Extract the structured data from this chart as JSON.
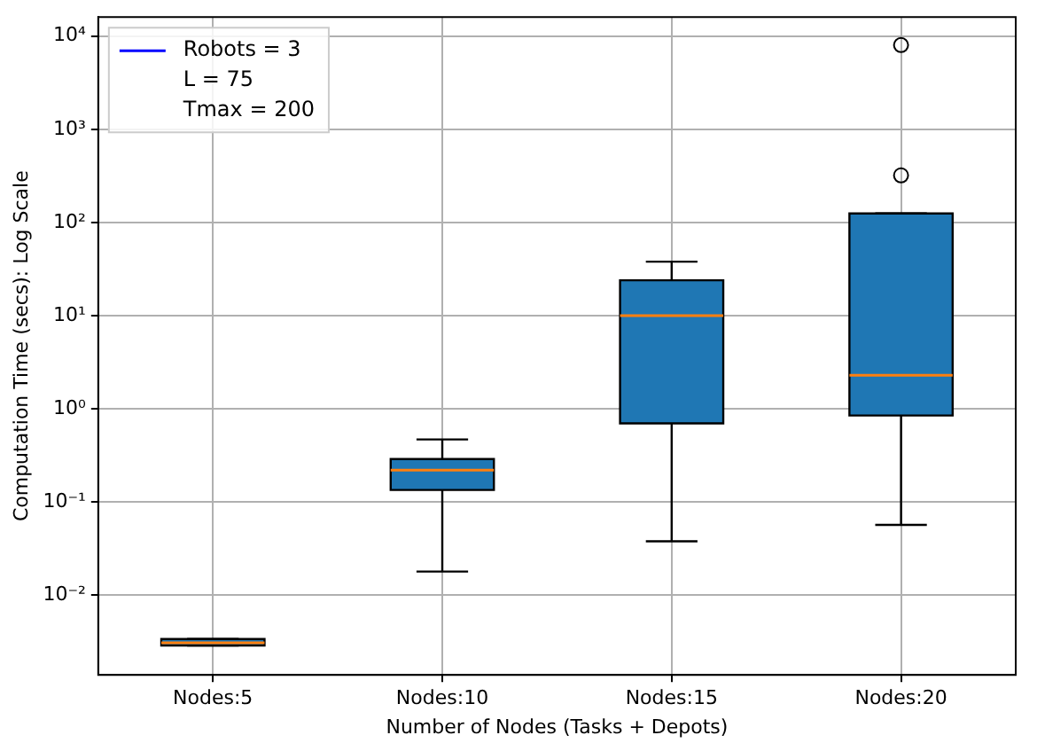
{
  "chart_data": {
    "type": "box",
    "xlabel": "Number of Nodes (Tasks + Depots)",
    "ylabel": "Computation Time (secs): Log Scale",
    "categories": [
      "Nodes:5",
      "Nodes:10",
      "Nodes:15",
      "Nodes:20"
    ],
    "log": "y",
    "ylim": [
      0.0014,
      16000
    ],
    "yticks": [
      {
        "value": 0.01,
        "label": "10⁻²"
      },
      {
        "value": 0.1,
        "label": "10⁻¹"
      },
      {
        "value": 1,
        "label": "10⁰"
      },
      {
        "value": 10,
        "label": "10¹"
      },
      {
        "value": 100,
        "label": "10²"
      },
      {
        "value": 1000,
        "label": "10³"
      },
      {
        "value": 10000,
        "label": "10⁴"
      }
    ],
    "grid": true,
    "legend": "top left",
    "series": [
      {
        "color": "#1f77b4",
        "boxes": [
          {
            "low": 0.0029,
            "q1": 0.0029,
            "median": 0.0031,
            "q3": 0.0034,
            "high": 0.0034
          },
          {
            "low": 0.018,
            "q1": 0.135,
            "median": 0.22,
            "q3": 0.29,
            "high": 0.47
          },
          {
            "low": 0.038,
            "q1": 0.7,
            "median": 10,
            "q3": 24,
            "high": 38
          },
          {
            "low": 0.057,
            "q1": 0.85,
            "median": 2.3,
            "q3": 125,
            "high": 125,
            "outliers": [
              320,
              8000
            ]
          }
        ]
      },
      {
        "type": "line",
        "name": "Robots = 3",
        "color": "#0000ff",
        "values": [
          null,
          null,
          null,
          null
        ]
      },
      {
        "type": "line",
        "name": "L = 75",
        "values": [
          null,
          null,
          null,
          null
        ]
      },
      {
        "type": "line",
        "name": "Tmax = 200",
        "values": [
          null,
          null,
          null,
          null
        ]
      }
    ]
  }
}
